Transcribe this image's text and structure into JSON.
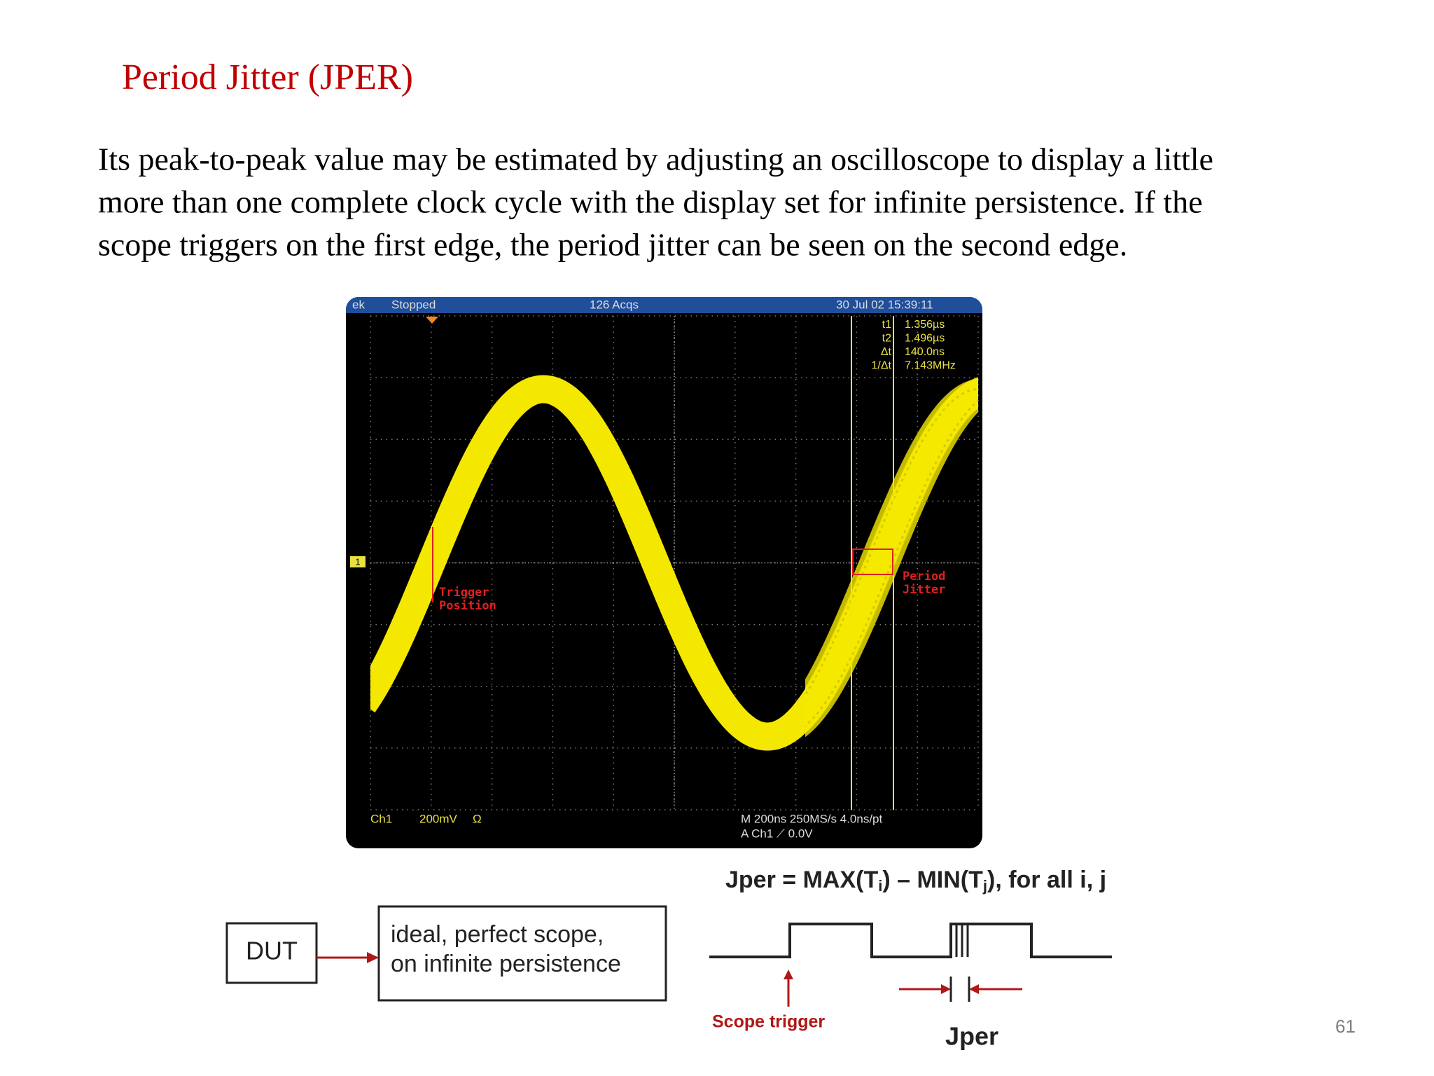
{
  "header": {
    "title": "Period Jitter (JPER)"
  },
  "body": {
    "lines": [
      "Its peak-to-peak value may be estimated by adjusting an oscilloscope to display a little",
      "more than one complete clock cycle with the display set for infinite persistence. If the",
      "scope triggers on the first edge, the period jitter can be seen on the second edge."
    ]
  },
  "scope": {
    "brand": "ek",
    "status": "Stopped",
    "acqs": "126 Acqs",
    "timestamp": "30 Jul 02 15:39:11",
    "measurements": [
      {
        "label": "t1",
        "value": "1.356µs"
      },
      {
        "label": "t2",
        "value": "1.496µs"
      },
      {
        "label": "Δt",
        "value": "140.0ns"
      },
      {
        "label": "1/Δt",
        "value": "7.143MHz"
      }
    ],
    "annotations": {
      "trigger": [
        "Trigger",
        "Position"
      ],
      "jitter": [
        "Period",
        "Jitter"
      ]
    },
    "channel_marker": "1",
    "footer": {
      "channel": "Ch1",
      "scale": "200mV",
      "coupling": "Ω",
      "timebase": "M 200ns 250MS/s 4.0ns/pt",
      "trigger": "A Ch1 ⟋ 0.0V"
    }
  },
  "diagram": {
    "formula": [
      "Jper = MAX(T",
      "i",
      ") – MIN(T",
      "j",
      "),  for all i, j"
    ],
    "dut": "DUT",
    "scope_box": [
      "ideal, perfect scope,",
      "on infinite persistence"
    ],
    "scope_trigger": "Scope trigger",
    "jper": "Jper"
  },
  "footer": {
    "page_number": "61"
  }
}
